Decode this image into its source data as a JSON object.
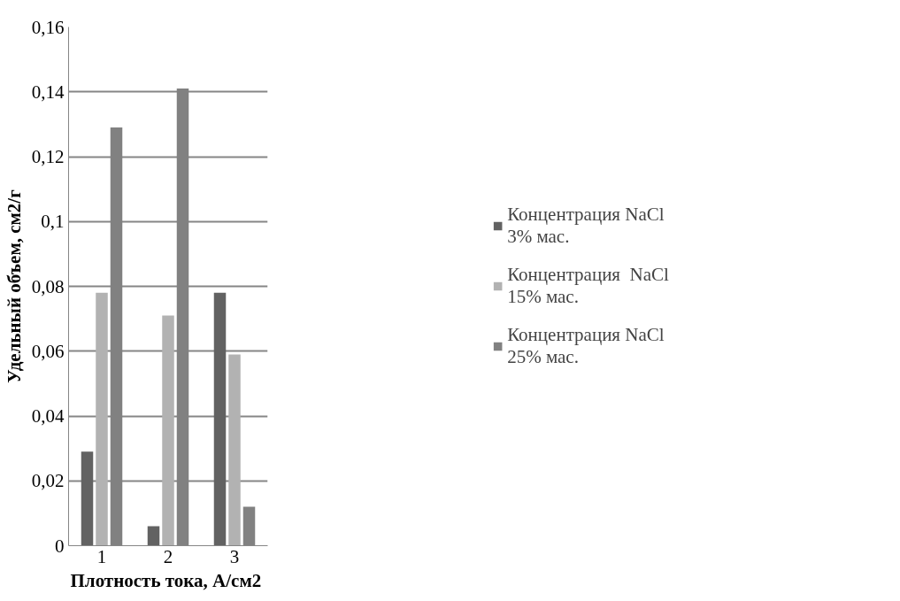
{
  "chart_data": {
    "type": "bar",
    "xlabel": "Плотность  тока, А/см2",
    "ylabel": "Удельный объем, см2/г",
    "categories": [
      "1",
      "2",
      "3"
    ],
    "series": [
      {
        "name": "Концентрация NaCl 3% мас.",
        "color": "#626262",
        "values": [
          0.029,
          0.006,
          0.078
        ]
      },
      {
        "name": "Концентрация  NaCl 15% мас.",
        "color": "#b2b2b2",
        "values": [
          0.078,
          0.071,
          0.059
        ]
      },
      {
        "name": "Концентрация NaCl 25% мас.",
        "color": "#818181",
        "values": [
          0.129,
          0.141,
          0.012
        ]
      }
    ],
    "ylim": [
      0,
      0.16
    ],
    "yticks": [
      0,
      {
        "value": 0.02,
        "label": "0,02"
      },
      {
        "value": 0.04,
        "label": "0,04"
      },
      {
        "value": 0.06,
        "label": "0,06"
      },
      {
        "value": 0.08,
        "label": "0,08"
      },
      {
        "value": 0.1,
        "label": "0,1"
      },
      {
        "value": 0.12,
        "label": "0,12"
      },
      {
        "value": 0.14,
        "label": "0,14"
      },
      {
        "value": 0.16,
        "label": "0,16"
      }
    ],
    "grid": "y",
    "legend": "right"
  }
}
